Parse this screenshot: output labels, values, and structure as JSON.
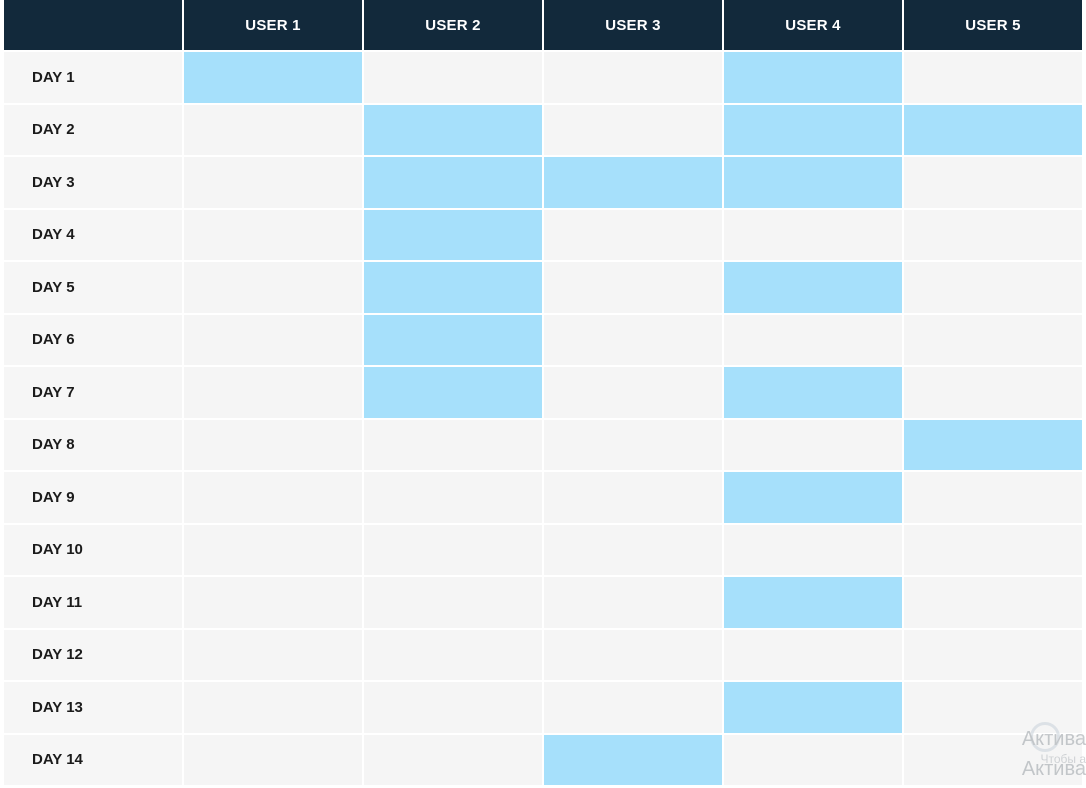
{
  "chart_data": {
    "type": "heatmap",
    "columns": [
      "USER 1",
      "USER 2",
      "USER 3",
      "USER 4",
      "USER 5"
    ],
    "rows": [
      "DAY 1",
      "DAY 2",
      "DAY 3",
      "DAY 4",
      "DAY 5",
      "DAY 6",
      "DAY 7",
      "DAY 8",
      "DAY 9",
      "DAY 10",
      "DAY 11",
      "DAY 12",
      "DAY 13",
      "DAY 14"
    ],
    "values": [
      [
        1,
        0,
        0,
        1,
        0
      ],
      [
        0,
        1,
        0,
        1,
        1
      ],
      [
        0,
        1,
        1,
        1,
        0
      ],
      [
        0,
        1,
        0,
        0,
        0
      ],
      [
        0,
        1,
        0,
        1,
        0
      ],
      [
        0,
        1,
        0,
        0,
        0
      ],
      [
        0,
        1,
        0,
        1,
        0
      ],
      [
        0,
        0,
        0,
        0,
        1
      ],
      [
        0,
        0,
        0,
        1,
        0
      ],
      [
        0,
        0,
        0,
        0,
        0
      ],
      [
        0,
        0,
        0,
        1,
        0
      ],
      [
        0,
        0,
        0,
        0,
        0
      ],
      [
        0,
        0,
        0,
        1,
        0
      ],
      [
        0,
        0,
        1,
        0,
        0
      ]
    ],
    "colors": {
      "header_bg": "#12293b",
      "header_text": "#ffffff",
      "active": "#a6e0fb",
      "inactive": "#f5f5f5"
    }
  },
  "watermark": {
    "line1": "Актива",
    "line2": "Чтобы а",
    "line3": "Актива"
  }
}
